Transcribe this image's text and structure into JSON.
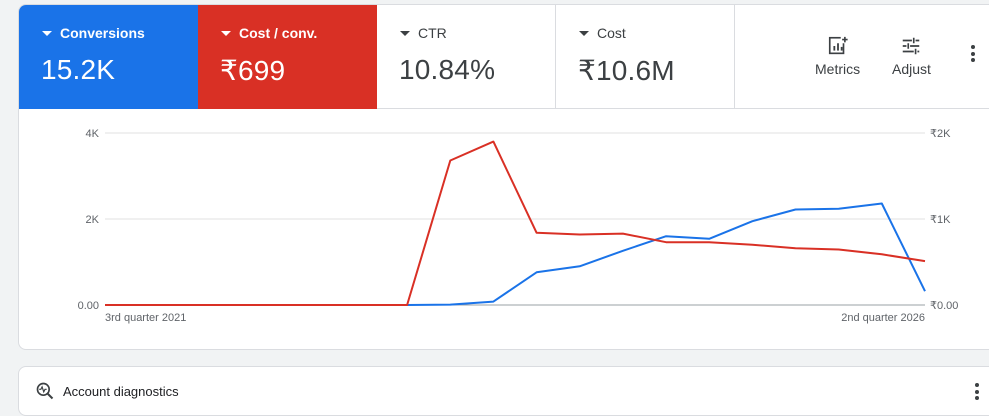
{
  "scorecards": [
    {
      "label": "Conversions",
      "value": "15.2K",
      "color": "#1a73e8"
    },
    {
      "label": "Cost / conv.",
      "value": "₹699",
      "color": "#d93025"
    },
    {
      "label": "CTR",
      "value": "10.84%"
    },
    {
      "label": "Cost",
      "value": "₹10.6M"
    }
  ],
  "toolbar": {
    "metrics_label": "Metrics",
    "adjust_label": "Adjust",
    "metrics_icon": "metrics-icon",
    "adjust_icon": "tune-icon",
    "more_icon": "more-vert-icon"
  },
  "chart_data": {
    "type": "line",
    "x_start_label": "3rd quarter 2021",
    "x_end_label": "2nd quarter 2026",
    "left_axis": {
      "ticks": [
        "4K",
        "2K",
        "0.00"
      ],
      "range": [
        0,
        4000
      ]
    },
    "right_axis": {
      "ticks": [
        "₹2K",
        "₹1K",
        "₹0.00"
      ],
      "range": [
        0,
        2000
      ]
    },
    "grid": true,
    "series": [
      {
        "color": "#1a73e8",
        "axis": "left",
        "values": [
          0,
          0,
          0,
          0,
          0,
          0,
          0,
          0,
          10,
          80,
          760,
          900,
          1260,
          1600,
          1540,
          1950,
          2220,
          2240,
          2360,
          320
        ]
      },
      {
        "color": "#d93025",
        "axis": "right",
        "values": [
          0,
          0,
          0,
          0,
          0,
          0,
          0,
          0,
          1680,
          1900,
          840,
          820,
          830,
          730,
          730,
          700,
          660,
          645,
          590,
          510
        ]
      }
    ]
  },
  "diagnostics": {
    "title": "Account diagnostics",
    "icon": "diagnostics-search-icon"
  }
}
